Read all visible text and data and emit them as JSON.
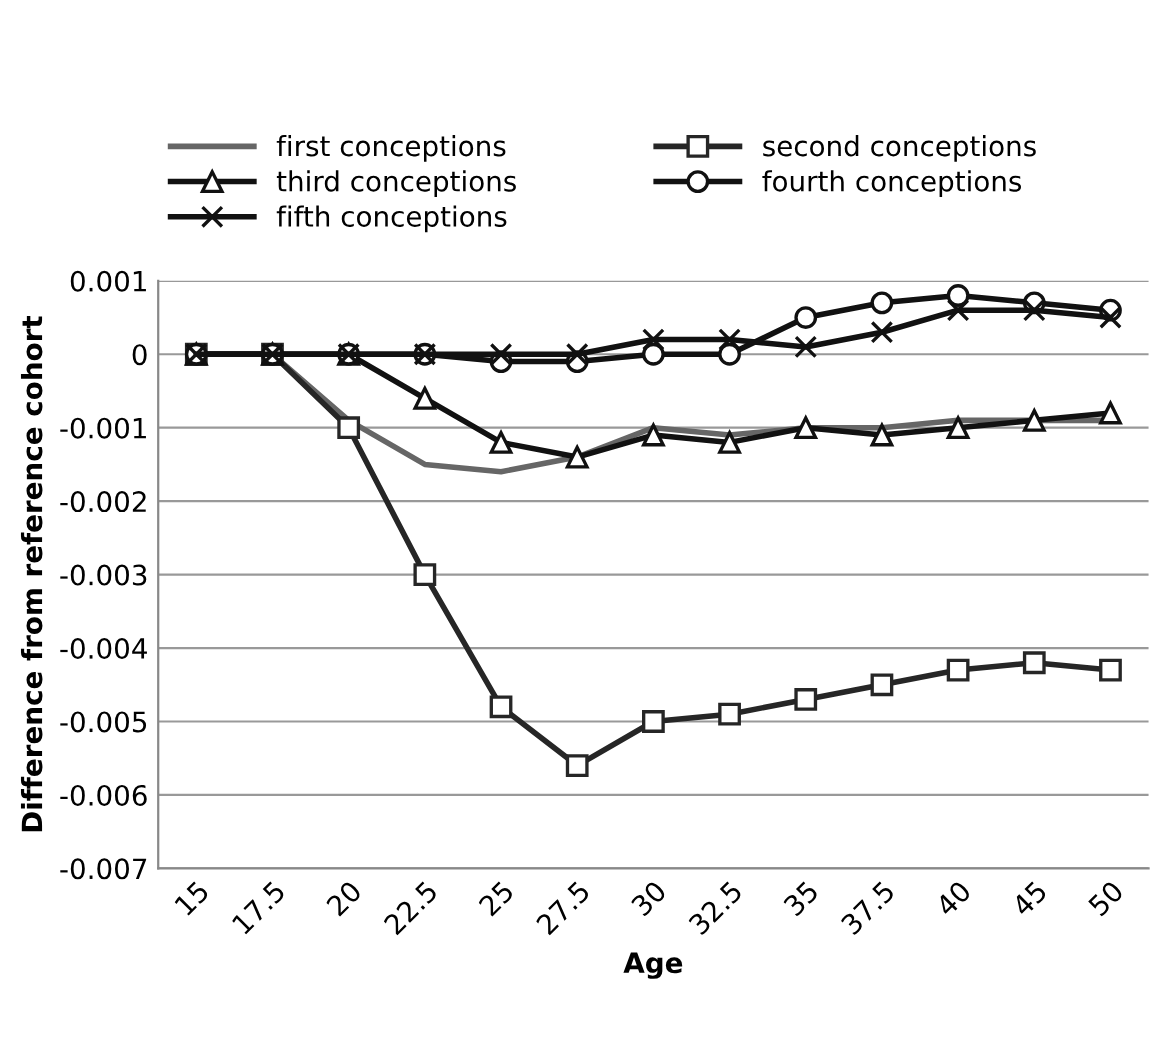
{
  "chart_data": {
    "type": "line",
    "xlabel": "Age",
    "ylabel": "Difference from reference cohort",
    "categories": [
      "15",
      "17.5",
      "20",
      "22.5",
      "25",
      "27.5",
      "30",
      "32.5",
      "35",
      "37.5",
      "40",
      "45",
      "50"
    ],
    "series": [
      {
        "name": "first conceptions",
        "color": "#666666",
        "marker": "none",
        "values": [
          0,
          0,
          -0.0009,
          -0.0015,
          -0.0016,
          -0.0014,
          -0.001,
          -0.0011,
          -0.001,
          -0.001,
          -0.0009,
          -0.0009,
          -0.0009
        ]
      },
      {
        "name": "second conceptions",
        "color": "#262626",
        "marker": "square",
        "values": [
          0,
          0,
          -0.001,
          -0.003,
          -0.0048,
          -0.0056,
          -0.005,
          -0.0049,
          -0.0047,
          -0.0045,
          -0.0043,
          -0.0042,
          -0.0043
        ]
      },
      {
        "name": "third conceptions",
        "color": "#111111",
        "marker": "triangle",
        "values": [
          0,
          0,
          0,
          -0.0006,
          -0.0012,
          -0.0014,
          -0.0011,
          -0.0012,
          -0.001,
          -0.0011,
          -0.001,
          -0.0009,
          -0.0008
        ]
      },
      {
        "name": "fourth conceptions",
        "color": "#111111",
        "marker": "circle",
        "values": [
          0,
          0,
          0,
          0,
          -0.0001,
          -0.0001,
          0,
          0,
          0.0005,
          0.0007,
          0.0008,
          0.0007,
          0.0006
        ]
      },
      {
        "name": "fifth conceptions",
        "color": "#111111",
        "marker": "cross",
        "values": [
          0,
          0,
          0,
          0,
          0,
          0,
          0.0002,
          0.0002,
          0.0001,
          0.0003,
          0.0006,
          0.0006,
          0.0005
        ]
      }
    ],
    "ylim": [
      -0.007,
      0.001
    ],
    "yticks": [
      -0.007,
      -0.006,
      -0.005,
      -0.004,
      -0.003,
      -0.002,
      -0.001,
      0,
      0.001
    ],
    "grid": "y",
    "legend": "top",
    "line_style": "solid"
  }
}
